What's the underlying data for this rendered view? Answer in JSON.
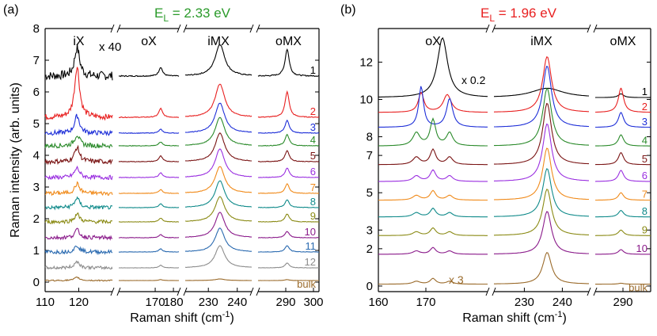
{
  "chart_data": [
    {
      "type": "line",
      "panel_label": "(a)",
      "title_prefix": "E",
      "title_sub": "L",
      "title_value": " = 2.33 eV",
      "title_color": "#2a9a2a",
      "ylabel": "Raman intensity (arb. units)",
      "xlabel_prefix": "Raman shift (cm",
      "xlabel_sup": "-1",
      "xlabel_suffix": ")",
      "ylim": [
        -0.3,
        8
      ],
      "yticks": [
        "0",
        "1",
        "2",
        "3",
        "4",
        "5",
        "6",
        "7",
        "8"
      ],
      "multiplier_label": "x 40",
      "segments": [
        {
          "name": "iX",
          "xlim": [
            110,
            130
          ],
          "ticks": [
            "110",
            "120"
          ],
          "tick_values": [
            110,
            120
          ]
        },
        {
          "name": "oX",
          "xlim": [
            150,
            183
          ],
          "ticks": [
            "170",
            "180"
          ],
          "tick_values": [
            170,
            180
          ]
        },
        {
          "name": "iMX",
          "xlim": [
            222,
            245
          ],
          "ticks": [
            "230",
            "240"
          ],
          "tick_values": [
            230,
            240
          ]
        },
        {
          "name": "oMX",
          "xlim": [
            280,
            302
          ],
          "ticks": [
            "290",
            "300"
          ],
          "tick_values": [
            290,
            300
          ]
        }
      ],
      "series": [
        {
          "name": "1",
          "color": "#000000",
          "offset": 6.5,
          "amps": [
            0.9,
            0.28,
            1.0,
            0.85
          ],
          "noise": 0.28,
          "label_pos": "right"
        },
        {
          "name": "2",
          "color": "#e82020",
          "offset": 5.2,
          "amps": [
            1.6,
            0.28,
            1.05,
            0.8
          ],
          "noise": 0.18
        },
        {
          "name": "3",
          "color": "#1e2fd8",
          "offset": 4.7,
          "amps": [
            0.55,
            0.12,
            0.95,
            0.4
          ],
          "noise": 0.15
        },
        {
          "name": "4",
          "color": "#2a8a2a",
          "offset": 4.3,
          "amps": [
            0.35,
            0.12,
            0.9,
            0.35
          ],
          "noise": 0.15
        },
        {
          "name": "5",
          "color": "#7a1414",
          "offset": 3.8,
          "amps": [
            0.45,
            0.18,
            0.9,
            0.35
          ],
          "noise": 0.15
        },
        {
          "name": "6",
          "color": "#9a2fe0",
          "offset": 3.3,
          "amps": [
            0.3,
            0.15,
            0.9,
            0.3
          ],
          "noise": 0.13
        },
        {
          "name": "7",
          "color": "#f08a1a",
          "offset": 2.8,
          "amps": [
            0.3,
            0.12,
            0.85,
            0.3
          ],
          "noise": 0.13
        },
        {
          "name": "8",
          "color": "#0f8a8a",
          "offset": 2.35,
          "amps": [
            0.3,
            0.12,
            0.85,
            0.25
          ],
          "noise": 0.12
        },
        {
          "name": "9",
          "color": "#8a8a14",
          "offset": 1.9,
          "amps": [
            0.25,
            0.12,
            0.8,
            0.25
          ],
          "noise": 0.12
        },
        {
          "name": "10",
          "color": "#8a1a8a",
          "offset": 1.4,
          "amps": [
            0.25,
            0.1,
            0.8,
            0.2
          ],
          "noise": 0.12
        },
        {
          "name": "11",
          "color": "#2a6ab0",
          "offset": 0.95,
          "amps": [
            0.2,
            0.1,
            0.75,
            0.2
          ],
          "noise": 0.12
        },
        {
          "name": "12",
          "color": "#8c8c8c",
          "offset": 0.45,
          "amps": [
            0.2,
            0.08,
            0.7,
            0.15
          ],
          "noise": 0.1
        },
        {
          "name": "bulk",
          "color": "#9a6a2a",
          "offset": 0.05,
          "amps": [
            0.1,
            0.03,
            0.05,
            0.03
          ],
          "noise": 0.04
        }
      ]
    },
    {
      "type": "line",
      "panel_label": "(b)",
      "title_prefix": "E",
      "title_sub": "L",
      "title_value": " = 1.96 eV",
      "title_color": "#e82020",
      "xlabel_prefix": "Raman shift (cm",
      "xlabel_sup": "-1",
      "xlabel_suffix": ")",
      "ylim": [
        -0.3,
        13.8
      ],
      "yticks": [
        "0",
        "2",
        "3",
        "5",
        "7",
        "8",
        "10",
        "12"
      ],
      "ytick_values": [
        0,
        2,
        3,
        5,
        7,
        8,
        10,
        12
      ],
      "multiplier_top": "x 0.2",
      "multiplier_bottom": "x 3",
      "segments": [
        {
          "name": "oX",
          "xlim": [
            160,
            183
          ],
          "ticks": [
            "160",
            "170"
          ],
          "tick_values": [
            160,
            170
          ]
        },
        {
          "name": "iMX",
          "xlim": [
            222,
            247
          ],
          "ticks": [
            "230",
            "240"
          ],
          "tick_values": [
            230,
            240
          ]
        },
        {
          "name": "oMX",
          "xlim": [
            283,
            297
          ],
          "ticks": [
            "290"
          ],
          "tick_values": [
            290
          ]
        }
      ],
      "series": [
        {
          "name": "1",
          "color": "#000000",
          "offset": 10.1,
          "amps": [
            3.2,
            0.5,
            0.2
          ],
          "noise": 0.0
        },
        {
          "name": "2",
          "color": "#e82020",
          "offset": 9.3,
          "amps": [
            1.9,
            3.0,
            1.3
          ],
          "noise": 0.0
        },
        {
          "name": "3",
          "color": "#1e2fd8",
          "offset": 8.5,
          "amps": [
            2.2,
            3.3,
            0.8
          ],
          "noise": 0.0
        },
        {
          "name": "4",
          "color": "#2a8a2a",
          "offset": 7.5,
          "amps": [
            1.4,
            3.1,
            0.6
          ],
          "noise": 0.0
        },
        {
          "name": "5",
          "color": "#7a1414",
          "offset": 6.5,
          "amps": [
            0.8,
            3.3,
            0.65
          ],
          "noise": 0.0
        },
        {
          "name": "6",
          "color": "#9a2fe0",
          "offset": 5.6,
          "amps": [
            0.6,
            3.1,
            0.6
          ],
          "noise": 0.0
        },
        {
          "name": "7",
          "color": "#f08a1a",
          "offset": 4.6,
          "amps": [
            0.5,
            2.8,
            0.4
          ],
          "noise": 0.0
        },
        {
          "name": "8",
          "color": "#0f8a8a",
          "offset": 3.7,
          "amps": [
            0.45,
            2.6,
            0.35
          ],
          "noise": 0.0
        },
        {
          "name": "9",
          "color": "#8a8a14",
          "offset": 2.7,
          "amps": [
            0.4,
            2.5,
            0.3
          ],
          "noise": 0.0
        },
        {
          "name": "10",
          "color": "#8a1a8a",
          "offset": 1.7,
          "amps": [
            0.35,
            2.3,
            0.25
          ],
          "noise": 0.0
        },
        {
          "name": "bulk",
          "color": "#9a6a2a",
          "offset": 0.1,
          "amps": [
            0.3,
            1.7,
            0.05
          ],
          "noise": 0.0
        }
      ]
    }
  ]
}
